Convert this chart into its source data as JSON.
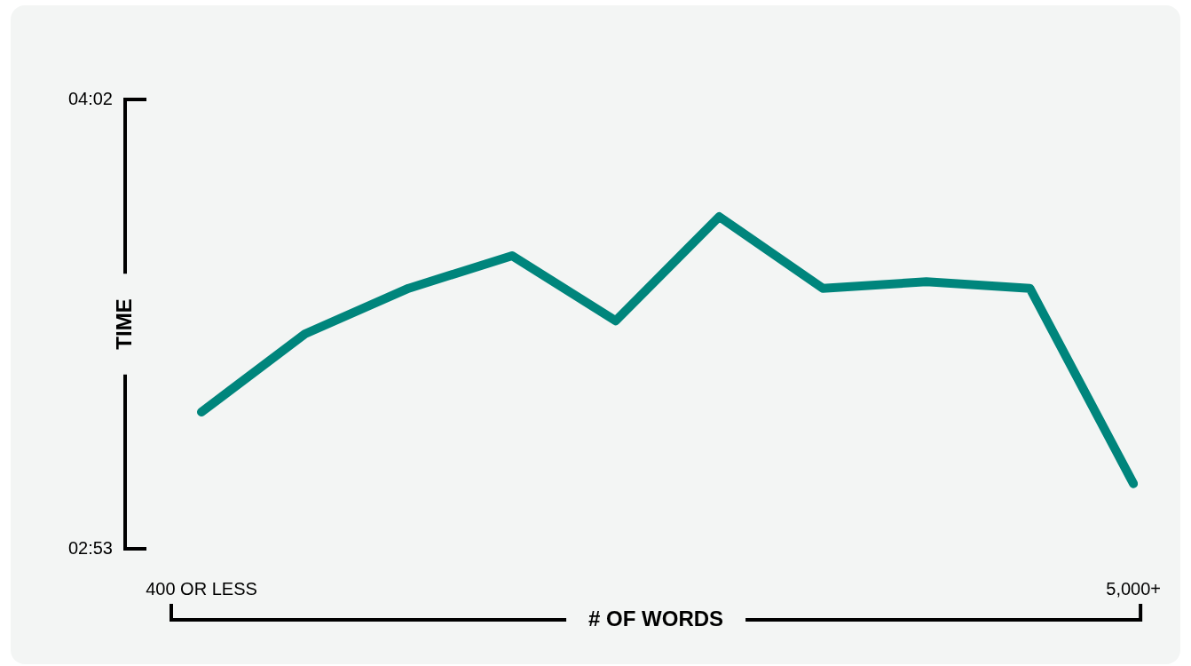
{
  "chart_data": {
    "type": "line",
    "xlabel": "# OF WORDS",
    "ylabel": "TIME",
    "categories": [
      "400 OR LESS",
      null,
      null,
      null,
      null,
      null,
      null,
      null,
      null,
      "5,000+"
    ],
    "series": [
      {
        "color": "#00857c",
        "values": [
          194,
          206,
          213,
          218,
          208,
          224,
          213,
          214,
          213,
          183
        ]
      }
    ],
    "ylim": [
      173,
      242
    ],
    "yticks": [
      {
        "value": 173,
        "label": "02:53"
      },
      {
        "value": 242,
        "label": "04:02"
      }
    ],
    "grid": false,
    "legend": false,
    "marker": "none",
    "line_style": "solid"
  }
}
